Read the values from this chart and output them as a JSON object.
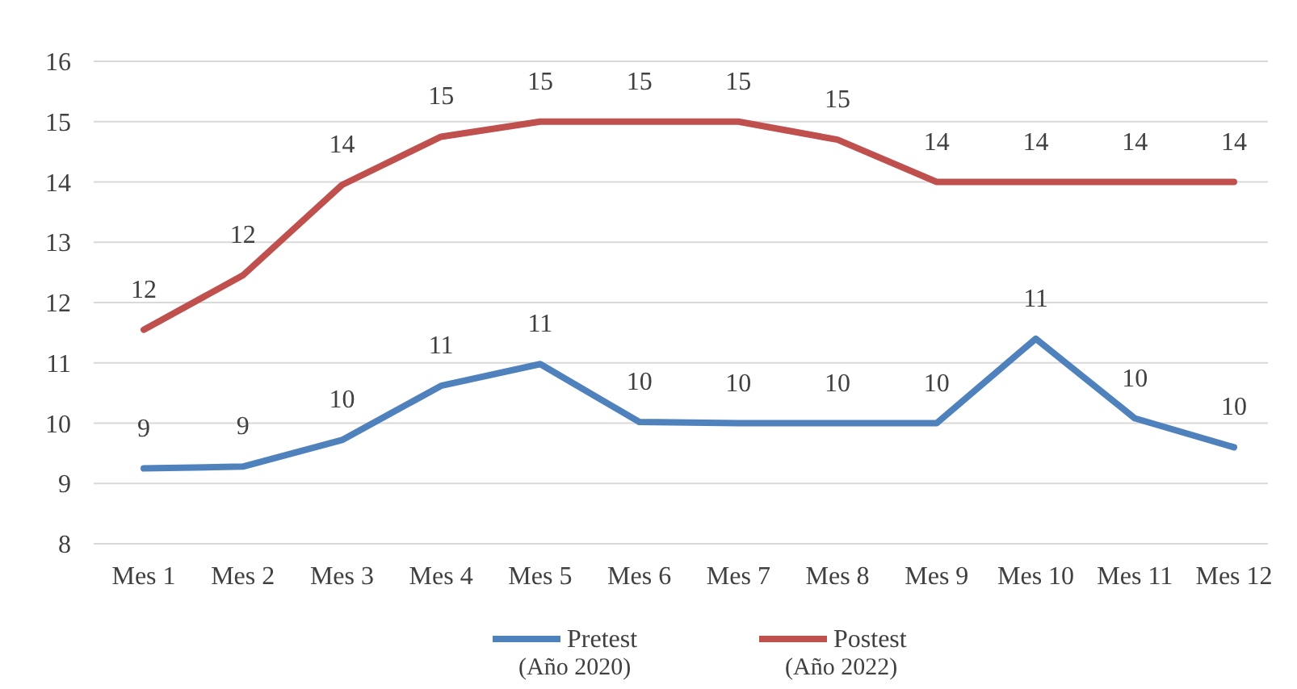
{
  "chart_data": {
    "type": "line",
    "categories": [
      "Mes 1",
      "Mes 2",
      "Mes 3",
      "Mes 4",
      "Mes 5",
      "Mes 6",
      "Mes 7",
      "Mes 8",
      "Mes 9",
      "Mes 10",
      "Mes 11",
      "Mes 12"
    ],
    "series": [
      {
        "name": "Pretest (Año 2020)",
        "color": "#4f81bd",
        "values": [
          9.25,
          9.28,
          9.72,
          10.62,
          10.98,
          10.02,
          10.0,
          10.0,
          10.0,
          11.4,
          10.08,
          9.6
        ],
        "value_labels": [
          "9",
          "9",
          "10",
          "11",
          "11",
          "10",
          "10",
          "10",
          "10",
          "11",
          "10",
          "10"
        ]
      },
      {
        "name": "Postest (Año 2022)",
        "color": "#c0504d",
        "values": [
          11.55,
          12.45,
          13.95,
          14.75,
          15.0,
          15.0,
          15.0,
          14.7,
          14.0,
          14.0,
          14.0,
          14.0
        ],
        "value_labels": [
          "12",
          "12",
          "14",
          "15",
          "15",
          "15",
          "15",
          "15",
          "14",
          "14",
          "14",
          "14"
        ]
      }
    ],
    "ylim": [
      8,
      16
    ],
    "yticks": [
      8,
      9,
      10,
      11,
      12,
      13,
      14,
      15,
      16
    ],
    "grid": "y",
    "legend": "bottom",
    "marker": "none",
    "line_style": "solid"
  }
}
